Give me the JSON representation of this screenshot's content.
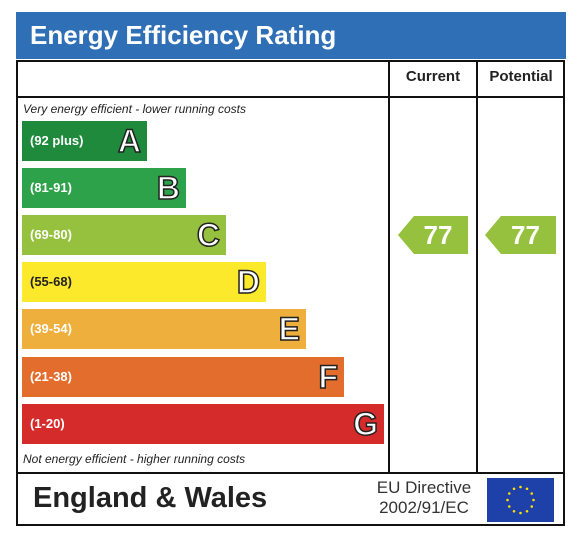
{
  "title": "Energy Efficiency Rating",
  "columns": {
    "current": "Current",
    "potential": "Potential"
  },
  "notes": {
    "top": "Very energy efficient - lower running costs",
    "bottom": "Not energy efficient - higher running costs"
  },
  "footer": {
    "region": "England & Wales",
    "directive_line1": "EU Directive",
    "directive_line2": "2002/91/EC"
  },
  "chart_data": {
    "type": "bar",
    "categories": [
      "A",
      "B",
      "C",
      "D",
      "E",
      "F",
      "G"
    ],
    "bands": [
      {
        "letter": "A",
        "range": "(92 plus)",
        "color": "#1f8a3b"
      },
      {
        "letter": "B",
        "range": "(81-91)",
        "color": "#2ea24a"
      },
      {
        "letter": "C",
        "range": "(69-80)",
        "color": "#95c13e"
      },
      {
        "letter": "D",
        "range": "(55-68)",
        "color": "#fde92b"
      },
      {
        "letter": "E",
        "range": "(39-54)",
        "color": "#eeaf3c"
      },
      {
        "letter": "F",
        "range": "(21-38)",
        "color": "#e36d2d"
      },
      {
        "letter": "G",
        "range": "(1-20)",
        "color": "#d52b2b"
      }
    ],
    "current": {
      "value": "77",
      "band": "C",
      "color": "#95c13e"
    },
    "potential": {
      "value": "77",
      "band": "C",
      "color": "#95c13e"
    }
  },
  "colors": {
    "header": "#2f6fb5",
    "eu_flag": "#1e40a9",
    "eu_stars": "#ffdd00"
  }
}
